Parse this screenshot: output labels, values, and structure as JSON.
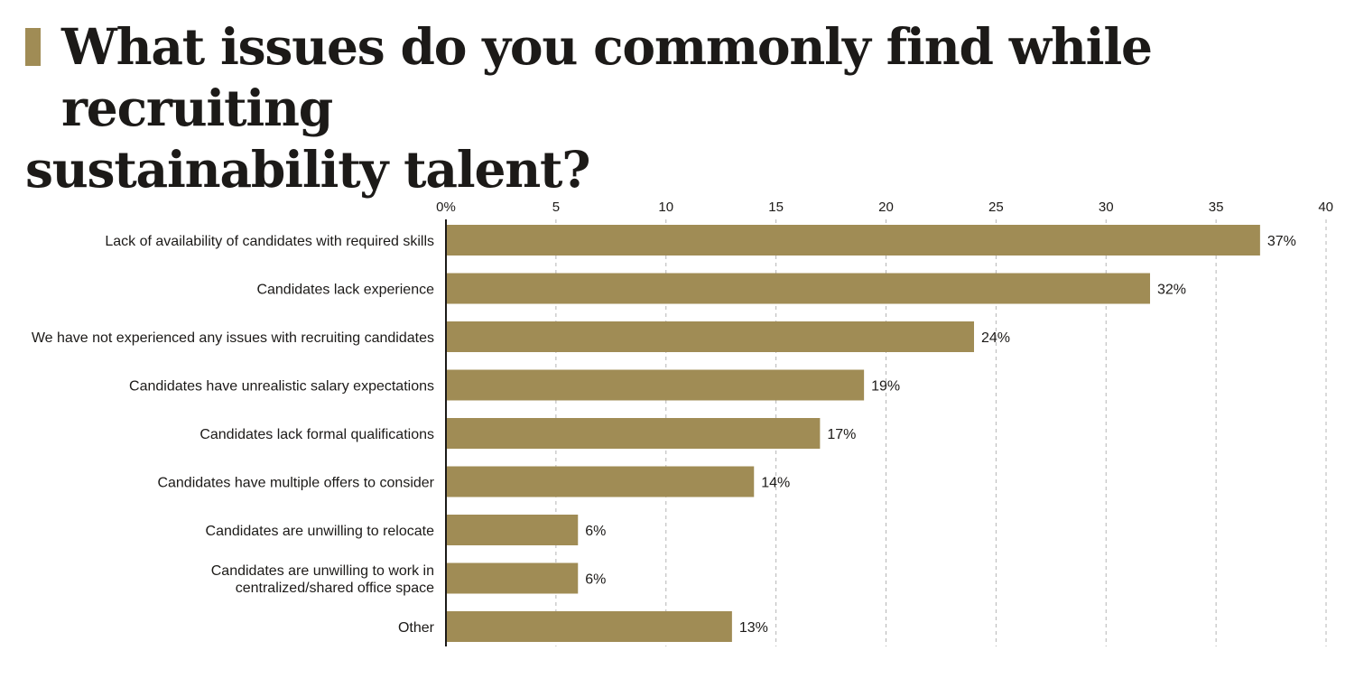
{
  "title": "What issues do you commonly find while recruiting sustainability talent?",
  "title_lines": [
    "What issues do you commonly find while recruiting",
    "sustainability talent?"
  ],
  "colors": {
    "bar": "#a08c55",
    "marker": "#a08c55",
    "text": "#1c1a18",
    "grid": "#b5b5b5",
    "axis": "#1c1a18"
  },
  "chart_data": {
    "type": "bar",
    "orientation": "horizontal",
    "title": "What issues do you commonly find while recruiting sustainability talent?",
    "categories": [
      [
        "Lack of availability of candidates with required skills"
      ],
      [
        "Candidates lack experience"
      ],
      [
        "We have not experienced any issues with recruiting candidates"
      ],
      [
        "Candidates have unrealistic salary expectations"
      ],
      [
        "Candidates lack formal qualifications"
      ],
      [
        "Candidates have multiple offers to consider"
      ],
      [
        "Candidates are unwilling to relocate"
      ],
      [
        "Candidates are unwilling to work in",
        "centralized/shared office space"
      ],
      [
        "Other"
      ]
    ],
    "values": [
      37,
      32,
      24,
      19,
      17,
      14,
      6,
      6,
      13
    ],
    "value_labels": [
      "37%",
      "32%",
      "24%",
      "19%",
      "17%",
      "14%",
      "6%",
      "6%",
      "13%"
    ],
    "xlim": [
      0,
      40
    ],
    "ticks": [
      0,
      5,
      10,
      15,
      20,
      25,
      30,
      35,
      40
    ],
    "tick_labels": [
      "0%",
      "5",
      "10",
      "15",
      "20",
      "25",
      "30",
      "35",
      "40"
    ],
    "axis_position": "top",
    "grid": true,
    "grid_style": "dashed vertical",
    "legend": "none"
  }
}
